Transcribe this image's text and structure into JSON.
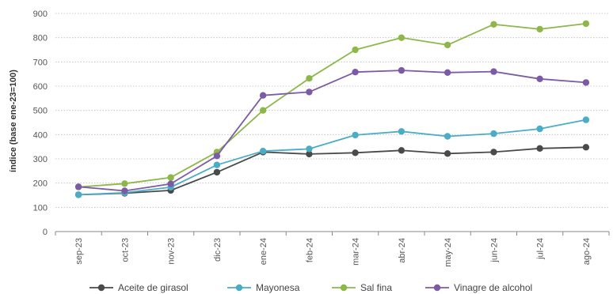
{
  "chart_data": {
    "type": "line",
    "title": "",
    "xlabel": "",
    "ylabel": "índice (base ene-23=100)",
    "ylim": [
      0,
      900
    ],
    "yticks": [
      0,
      100,
      200,
      300,
      400,
      500,
      600,
      700,
      800,
      900
    ],
    "grid": "horizontal dotted",
    "legend_position": "bottom",
    "categories": [
      "sep-23",
      "oct-23",
      "nov-23",
      "dic-23",
      "ene-24",
      "feb-24",
      "mar-24",
      "abr-24",
      "may-24",
      "jun-24",
      "jul-24",
      "ago-24"
    ],
    "series": [
      {
        "name": "Aceite de girasol",
        "color": "#4a4a4a",
        "values": [
          152,
          158,
          170,
          245,
          328,
          320,
          325,
          335,
          322,
          328,
          343,
          348
        ]
      },
      {
        "name": "Mayonesa",
        "color": "#4bacc6",
        "values": [
          152,
          160,
          183,
          275,
          332,
          341,
          398,
          413,
          393,
          404,
          424,
          461
        ]
      },
      {
        "name": "Sal fina",
        "color": "#8db849",
        "values": [
          184,
          198,
          223,
          328,
          500,
          632,
          750,
          800,
          770,
          855,
          835,
          858
        ]
      },
      {
        "name": "Vinagre de alcohol",
        "color": "#7b5ba6",
        "values": [
          185,
          168,
          197,
          312,
          562,
          576,
          658,
          665,
          656,
          660,
          630,
          615
        ]
      }
    ]
  }
}
